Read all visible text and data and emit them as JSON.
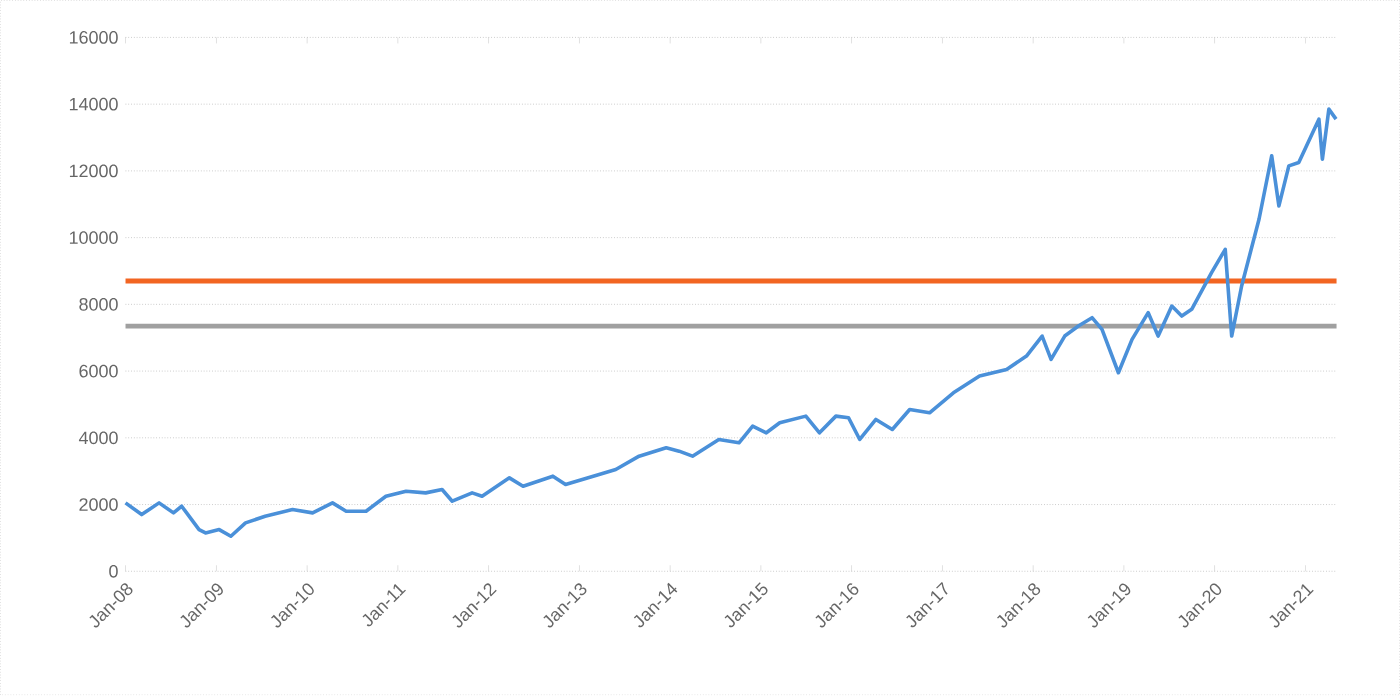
{
  "chart_data": {
    "type": "line",
    "grid": "y",
    "marker": "none",
    "xlim": [
      "2008-01-01",
      "2021-05-06"
    ],
    "ylim": [
      0,
      16000
    ],
    "yticks": [
      0,
      2000,
      4000,
      6000,
      8000,
      10000,
      12000,
      14000,
      16000
    ],
    "xticks": [
      {
        "value": "2008-01-01",
        "label": "Jan-08"
      },
      {
        "value": "2009-01-01",
        "label": "Jan-09"
      },
      {
        "value": "2010-01-01",
        "label": "Jan-10"
      },
      {
        "value": "2011-01-01",
        "label": "Jan-11"
      },
      {
        "value": "2012-01-01",
        "label": "Jan-12"
      },
      {
        "value": "2013-01-01",
        "label": "Jan-13"
      },
      {
        "value": "2014-01-01",
        "label": "Jan-14"
      },
      {
        "value": "2015-01-01",
        "label": "Jan-15"
      },
      {
        "value": "2016-01-01",
        "label": "Jan-16"
      },
      {
        "value": "2017-01-01",
        "label": "Jan-17"
      },
      {
        "value": "2018-01-01",
        "label": "Jan-18"
      },
      {
        "value": "2019-01-01",
        "label": "Jan-19"
      },
      {
        "value": "2020-01-01",
        "label": "Jan-20"
      },
      {
        "value": "2021-01-01",
        "label": "Jan-21"
      }
    ],
    "ref_lines": [
      {
        "axis": "y",
        "value": 8700,
        "color": "#f26522"
      },
      {
        "axis": "y",
        "value": 7350,
        "color": "#a0a0a0"
      }
    ],
    "x": [
      "2008-01-01",
      "2008-03-06",
      "2008-05-15",
      "2008-07-12",
      "2008-08-14",
      "2008-10-23",
      "2008-11-18",
      "2009-01-12",
      "2009-02-28",
      "2009-04-28",
      "2009-07-16",
      "2009-11-03",
      "2010-01-23",
      "2010-04-13",
      "2010-06-07",
      "2010-08-26",
      "2010-11-14",
      "2011-02-03",
      "2011-04-23",
      "2011-06-28",
      "2011-08-08",
      "2011-10-27",
      "2011-12-06",
      "2012-03-25",
      "2012-05-19",
      "2012-09-16",
      "2012-11-06",
      "2013-03-21",
      "2013-05-27",
      "2013-08-29",
      "2013-12-16",
      "2014-02-06",
      "2014-04-01",
      "2014-07-16",
      "2014-10-05",
      "2014-11-29",
      "2015-01-23",
      "2015-03-18",
      "2015-07-01",
      "2015-08-25",
      "2015-10-30",
      "2015-12-20",
      "2016-02-03",
      "2016-04-08",
      "2016-06-13",
      "2016-08-22",
      "2016-11-10",
      "2017-02-14",
      "2017-05-30",
      "2017-09-16",
      "2017-12-05",
      "2018-02-06",
      "2018-03-14",
      "2018-05-08",
      "2018-07-02",
      "2018-08-26",
      "2018-10-05",
      "2018-12-10",
      "2019-02-03",
      "2019-04-09",
      "2019-05-19",
      "2019-07-13",
      "2019-08-22",
      "2019-10-01",
      "2019-12-20",
      "2020-02-13",
      "2020-03-10",
      "2020-04-19",
      "2020-06-28",
      "2020-08-18",
      "2020-09-16",
      "2020-10-26",
      "2020-12-05",
      "2021-02-24",
      "2021-03-10",
      "2021-04-05",
      "2021-05-04"
    ],
    "series": [
      {
        "color": "#4a90d9",
        "values": [
          2050,
          1700,
          2050,
          1750,
          1950,
          1250,
          1150,
          1250,
          1050,
          1450,
          1650,
          1850,
          1750,
          2050,
          1800,
          1800,
          2250,
          2400,
          2350,
          2450,
          2100,
          2350,
          2250,
          2800,
          2550,
          2850,
          2600,
          2900,
          3050,
          3450,
          3700,
          3600,
          3450,
          3950,
          3850,
          4350,
          4150,
          4450,
          4650,
          4150,
          4650,
          4600,
          3950,
          4550,
          4250,
          4850,
          4750,
          5350,
          5850,
          6050,
          6450,
          7050,
          6350,
          7050,
          7350,
          7600,
          7250,
          5950,
          6950,
          7750,
          7050,
          7950,
          7650,
          7850,
          8950,
          9650,
          7050,
          8550,
          10550,
          12450,
          10950,
          12150,
          12250,
          13550,
          12350,
          13850,
          13550
        ]
      }
    ]
  }
}
